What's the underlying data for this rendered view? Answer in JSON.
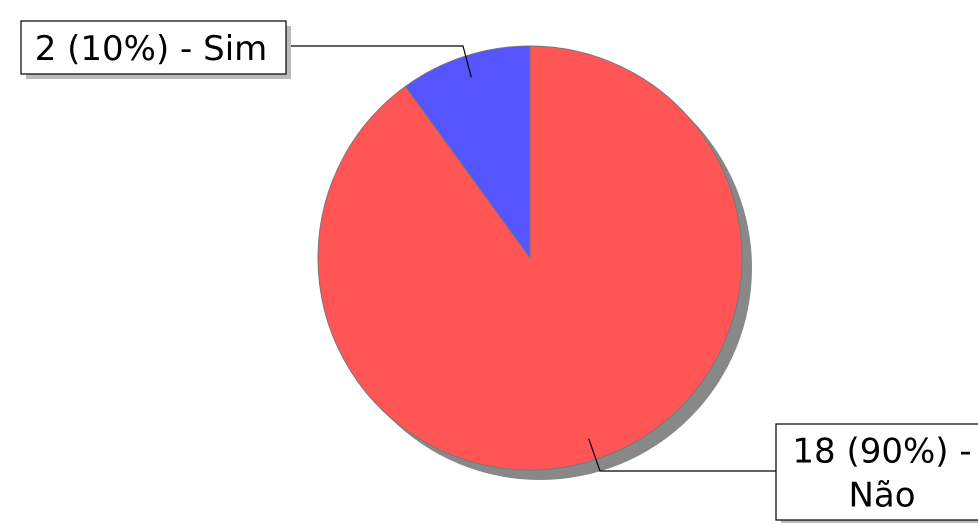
{
  "chart_data": {
    "type": "pie",
    "title": "",
    "slices": [
      {
        "label": "Sim",
        "value": 2,
        "percent": 10,
        "label_lines": [
          "2 (10%) - Sim"
        ],
        "color": "#5555ff"
      },
      {
        "label": "Não",
        "value": 18,
        "percent": 90,
        "label_lines": [
          "18 (90%) -",
          "Não"
        ],
        "color": "#ff5555"
      }
    ],
    "shadow_color": "#888888",
    "edge_color": "#777777"
  }
}
